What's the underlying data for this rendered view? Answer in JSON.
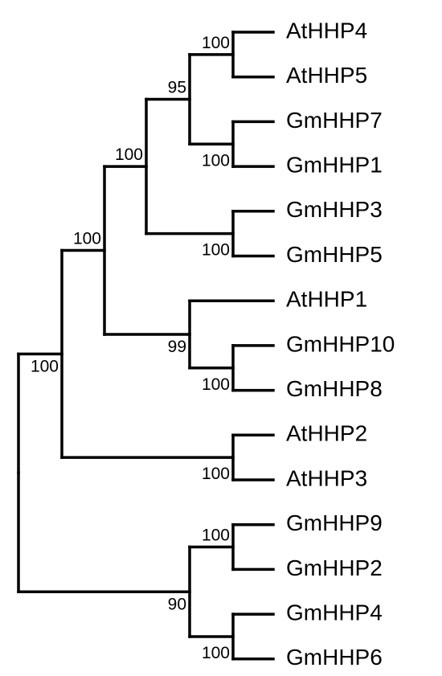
{
  "tree": {
    "leaves": [
      {
        "id": "l1",
        "label": "AtHHP4"
      },
      {
        "id": "l2",
        "label": "AtHHP5"
      },
      {
        "id": "l3",
        "label": "GmHHP7"
      },
      {
        "id": "l4",
        "label": "GmHHP1"
      },
      {
        "id": "l5",
        "label": "GmHHP3"
      },
      {
        "id": "l6",
        "label": "GmHHP5"
      },
      {
        "id": "l7",
        "label": "AtHHP1"
      },
      {
        "id": "l8",
        "label": "GmHHP10"
      },
      {
        "id": "l9",
        "label": "GmHHP8"
      },
      {
        "id": "l10",
        "label": "AtHHP2"
      },
      {
        "id": "l11",
        "label": "AtHHP3"
      },
      {
        "id": "l12",
        "label": "GmHHP9"
      },
      {
        "id": "l13",
        "label": "GmHHP2"
      },
      {
        "id": "l14",
        "label": "GmHHP4"
      },
      {
        "id": "l15",
        "label": "GmHHP6"
      }
    ],
    "clades": [
      {
        "id": "c1",
        "children": [
          "l1",
          "l2"
        ],
        "support": "100"
      },
      {
        "id": "c2",
        "children": [
          "l3",
          "l4"
        ],
        "support": "100"
      },
      {
        "id": "c3",
        "children": [
          "c1",
          "c2"
        ],
        "support": "95"
      },
      {
        "id": "c4",
        "children": [
          "l5",
          "l6"
        ],
        "support": "100"
      },
      {
        "id": "c5",
        "children": [
          "c3",
          "c4"
        ],
        "support": "100"
      },
      {
        "id": "c6",
        "children": [
          "l8",
          "l9"
        ],
        "support": "100"
      },
      {
        "id": "c7",
        "children": [
          "l7",
          "c6"
        ],
        "support": "99"
      },
      {
        "id": "c8",
        "children": [
          "c5",
          "c7"
        ],
        "support": "100"
      },
      {
        "id": "c9",
        "children": [
          "l10",
          "l11"
        ],
        "support": "100"
      },
      {
        "id": "c10",
        "children": [
          "c8",
          "c9"
        ],
        "support": "100"
      },
      {
        "id": "c11",
        "children": [
          "l12",
          "l13"
        ],
        "support": "100"
      },
      {
        "id": "c12",
        "children": [
          "l14",
          "l15"
        ],
        "support": "100"
      },
      {
        "id": "c13",
        "children": [
          "c11",
          "c12"
        ],
        "support": "90"
      },
      {
        "id": "root",
        "children": [
          "c10",
          "c13"
        ],
        "support": ""
      }
    ]
  }
}
